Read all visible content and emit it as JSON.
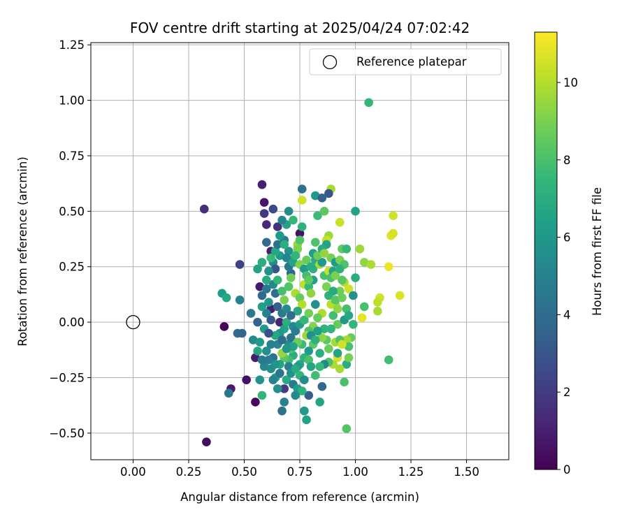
{
  "chart_data": {
    "type": "scatter",
    "title": "FOV centre drift starting at 2025/04/24 07:02:42",
    "xlabel": "Angular distance from reference (arcmin)",
    "ylabel": "Rotation from reference (arcmin)",
    "xlim": [
      -0.19,
      1.69
    ],
    "ylim": [
      -0.62,
      1.26
    ],
    "xticks": [
      "0.00",
      "0.25",
      "0.50",
      "0.75",
      "1.00",
      "1.25",
      "1.50"
    ],
    "xtick_values": [
      0,
      0.25,
      0.5,
      0.75,
      1.0,
      1.25,
      1.5
    ],
    "yticks": [
      "−0.50",
      "−0.25",
      "0.00",
      "0.25",
      "0.50",
      "0.75",
      "1.00",
      "1.25"
    ],
    "ytick_values": [
      -0.5,
      -0.25,
      0,
      0.25,
      0.5,
      0.75,
      1.0,
      1.25
    ],
    "grid": true,
    "legend": {
      "position": "top-right",
      "label": "Reference platepar"
    },
    "reference_point": {
      "x": 0,
      "y": 0
    },
    "colorbar": {
      "label": "Hours from first FF file",
      "colormap": "viridis",
      "range": [
        0,
        11.3
      ],
      "ticks": [
        "0",
        "2",
        "4",
        "6",
        "8",
        "10"
      ],
      "tick_values": [
        0,
        2,
        4,
        6,
        8,
        10
      ]
    },
    "points": [
      [
        0.32,
        0.51,
        1.5
      ],
      [
        0.33,
        -0.54,
        0.4
      ],
      [
        0.41,
        -0.02,
        0.1
      ],
      [
        0.44,
        -0.3,
        0.8
      ],
      [
        0.51,
        -0.26,
        0.5
      ],
      [
        0.55,
        -0.36,
        0.3
      ],
      [
        0.58,
        0.62,
        1.0
      ],
      [
        0.59,
        0.54,
        0.7
      ],
      [
        0.59,
        0.49,
        1.8
      ],
      [
        0.6,
        0.44,
        1.3
      ],
      [
        0.62,
        0.32,
        1.0
      ],
      [
        0.63,
        0.51,
        2.5
      ],
      [
        0.65,
        0.43,
        1.6
      ],
      [
        0.75,
        0.4,
        0.5
      ],
      [
        0.48,
        0.26,
        2.2
      ],
      [
        0.57,
        0.16,
        0.8
      ],
      [
        0.62,
        0.06,
        1.0
      ],
      [
        0.66,
        0.0,
        1.2
      ],
      [
        0.55,
        -0.16,
        0.9
      ],
      [
        0.68,
        -0.3,
        2.0
      ],
      [
        0.76,
        0.6,
        4.2
      ],
      [
        0.7,
        0.5,
        5.5
      ],
      [
        0.82,
        0.57,
        6.0
      ],
      [
        0.89,
        0.6,
        9.8
      ],
      [
        0.88,
        0.58,
        3.0
      ],
      [
        0.76,
        0.55,
        10.5
      ],
      [
        0.85,
        0.56,
        3.5
      ],
      [
        1.06,
        0.99,
        7.5
      ],
      [
        1.0,
        0.5,
        6.5
      ],
      [
        1.17,
        0.48,
        10.5
      ],
      [
        1.16,
        0.39,
        10.8
      ],
      [
        1.17,
        0.4,
        10.6
      ],
      [
        1.15,
        0.25,
        11.0
      ],
      [
        1.02,
        0.33,
        9.6
      ],
      [
        1.04,
        0.27,
        9.3
      ],
      [
        1.07,
        0.26,
        9.9
      ],
      [
        1.2,
        0.12,
        10.7
      ],
      [
        1.11,
        0.11,
        10.5
      ],
      [
        1.1,
        0.09,
        10.2
      ],
      [
        1.04,
        0.07,
        8.0
      ],
      [
        1.1,
        0.05,
        9.8
      ],
      [
        1.03,
        0.02,
        10.9
      ],
      [
        1.15,
        -0.17,
        7.8
      ],
      [
        0.96,
        -0.48,
        8.2
      ],
      [
        0.95,
        -0.27,
        8.0
      ],
      [
        0.85,
        -0.29,
        3.8
      ],
      [
        0.84,
        -0.36,
        6.6
      ],
      [
        0.77,
        -0.4,
        6.0
      ],
      [
        0.78,
        -0.44,
        6.5
      ],
      [
        0.79,
        -0.33,
        3.4
      ],
      [
        0.67,
        -0.4,
        4.2
      ],
      [
        0.68,
        -0.36,
        5.0
      ],
      [
        0.58,
        -0.33,
        7.4
      ],
      [
        0.43,
        -0.32,
        4.5
      ],
      [
        0.4,
        0.13,
        6.2
      ],
      [
        0.42,
        0.11,
        6.8
      ],
      [
        0.48,
        0.1,
        5.0
      ],
      [
        0.47,
        -0.05,
        4.0
      ],
      [
        0.49,
        -0.05,
        3.6
      ],
      [
        0.53,
        0.04,
        4.6
      ],
      [
        0.54,
        -0.08,
        5.4
      ],
      [
        0.56,
        -0.13,
        6.7
      ],
      [
        0.57,
        -0.26,
        5.8
      ],
      [
        0.64,
        -0.25,
        6.3
      ],
      [
        0.66,
        -0.23,
        4.4
      ],
      [
        0.6,
        0.04,
        5.0
      ],
      [
        0.61,
        0.09,
        6.0
      ],
      [
        0.56,
        0.24,
        6.5
      ],
      [
        0.58,
        0.27,
        7.0
      ],
      [
        0.6,
        0.36,
        4.0
      ],
      [
        0.63,
        0.27,
        5.5
      ],
      [
        0.64,
        0.24,
        3.0
      ],
      [
        0.66,
        0.3,
        6.2
      ],
      [
        0.68,
        0.37,
        4.8
      ],
      [
        0.7,
        0.32,
        5.8
      ],
      [
        0.71,
        0.28,
        6.8
      ],
      [
        0.69,
        0.44,
        6.5
      ],
      [
        0.67,
        0.46,
        5.2
      ],
      [
        0.72,
        0.46,
        7.5
      ],
      [
        0.74,
        0.35,
        9.5
      ],
      [
        0.74,
        0.33,
        9.0
      ],
      [
        0.76,
        0.43,
        7.2
      ],
      [
        0.78,
        0.28,
        8.6
      ],
      [
        0.81,
        0.24,
        7.3
      ],
      [
        0.82,
        0.36,
        8.1
      ],
      [
        0.83,
        0.48,
        7.7
      ],
      [
        0.86,
        0.5,
        8.4
      ],
      [
        0.88,
        0.39,
        9.6
      ],
      [
        0.87,
        0.37,
        10.3
      ],
      [
        0.87,
        0.35,
        6.5
      ],
      [
        0.89,
        0.29,
        8.9
      ],
      [
        0.91,
        0.27,
        6.2
      ],
      [
        0.93,
        0.45,
        10.4
      ],
      [
        0.94,
        0.33,
        8.5
      ],
      [
        0.93,
        0.28,
        9.0
      ],
      [
        0.95,
        0.26,
        8.1
      ],
      [
        0.96,
        0.33,
        7.5
      ],
      [
        0.95,
        0.18,
        9.9
      ],
      [
        0.94,
        0.19,
        8.3
      ],
      [
        0.97,
        0.15,
        10.5
      ],
      [
        0.93,
        0.14,
        8.8
      ],
      [
        0.91,
        0.08,
        9.5
      ],
      [
        0.9,
        0.03,
        7.8
      ],
      [
        0.92,
        -0.01,
        8.6
      ],
      [
        0.95,
        0.01,
        6.0
      ],
      [
        0.98,
        -0.07,
        8.7
      ],
      [
        0.96,
        -0.08,
        9.8
      ],
      [
        0.97,
        -0.11,
        8.0
      ],
      [
        0.96,
        -0.19,
        7.0
      ],
      [
        0.97,
        -0.16,
        8.9
      ],
      [
        0.93,
        -0.21,
        9.8
      ],
      [
        0.92,
        -0.16,
        10.6
      ],
      [
        0.9,
        -0.19,
        9.9
      ],
      [
        0.88,
        -0.18,
        8.1
      ],
      [
        0.86,
        -0.19,
        5.3
      ],
      [
        0.84,
        -0.2,
        7.6
      ],
      [
        0.87,
        -0.08,
        8.4
      ],
      [
        0.85,
        -0.07,
        9.3
      ],
      [
        0.86,
        -0.03,
        7.3
      ],
      [
        0.85,
        0.04,
        9.9
      ],
      [
        0.83,
        0.02,
        8.6
      ],
      [
        0.82,
        0.08,
        5.6
      ],
      [
        0.81,
        -0.02,
        9.2
      ],
      [
        0.79,
        -0.04,
        8.1
      ],
      [
        0.78,
        -0.06,
        9.6
      ],
      [
        0.77,
        -0.16,
        7.2
      ],
      [
        0.75,
        -0.19,
        6.7
      ],
      [
        0.74,
        -0.2,
        6.0
      ],
      [
        0.72,
        -0.15,
        7.0
      ],
      [
        0.71,
        -0.12,
        8.3
      ],
      [
        0.7,
        -0.1,
        5.6
      ],
      [
        0.71,
        -0.07,
        4.3
      ],
      [
        0.68,
        -0.03,
        6.5
      ],
      [
        0.69,
        0.0,
        7.1
      ],
      [
        0.66,
        -0.05,
        5.9
      ],
      [
        0.64,
        -0.06,
        6.8
      ],
      [
        0.63,
        -0.16,
        4.2
      ],
      [
        0.61,
        -0.17,
        4.8
      ],
      [
        0.6,
        -0.13,
        5.6
      ],
      [
        0.62,
        -0.1,
        5.0
      ],
      [
        0.59,
        -0.03,
        6.1
      ],
      [
        0.62,
        0.01,
        3.2
      ],
      [
        0.64,
        0.13,
        4.1
      ],
      [
        0.63,
        0.17,
        5.3
      ],
      [
        0.65,
        0.19,
        7.5
      ],
      [
        0.67,
        0.14,
        7.9
      ],
      [
        0.68,
        0.1,
        9.0
      ],
      [
        0.7,
        0.16,
        8.2
      ],
      [
        0.71,
        0.22,
        3.6
      ],
      [
        0.73,
        0.13,
        9.9
      ],
      [
        0.75,
        0.11,
        8.6
      ],
      [
        0.76,
        0.08,
        10.0
      ],
      [
        0.74,
        0.05,
        6.8
      ],
      [
        0.77,
        0.17,
        10.2
      ],
      [
        0.79,
        0.16,
        7.6
      ],
      [
        0.8,
        0.13,
        9.4
      ],
      [
        0.81,
        0.19,
        6.4
      ],
      [
        0.82,
        0.28,
        7.0
      ],
      [
        0.84,
        0.26,
        9.7
      ],
      [
        0.85,
        0.27,
        6.1
      ],
      [
        0.86,
        0.21,
        7.9
      ],
      [
        0.87,
        0.16,
        9.0
      ],
      [
        0.88,
        0.12,
        7.2
      ],
      [
        0.89,
        0.08,
        10.1
      ],
      [
        0.9,
        0.14,
        6.9
      ],
      [
        0.91,
        0.1,
        8.3
      ],
      [
        0.92,
        0.06,
        9.3
      ],
      [
        0.89,
        -0.03,
        7.4
      ],
      [
        0.91,
        -0.09,
        9.7
      ],
      [
        0.93,
        -0.08,
        8.2
      ],
      [
        0.94,
        -0.1,
        10.5
      ],
      [
        0.92,
        -0.14,
        6.6
      ],
      [
        0.88,
        -0.12,
        8.7
      ],
      [
        0.84,
        -0.14,
        7.0
      ],
      [
        0.81,
        -0.1,
        8.4
      ],
      [
        0.79,
        -0.13,
        6.2
      ],
      [
        0.76,
        -0.1,
        7.7
      ],
      [
        0.74,
        -0.09,
        8.7
      ],
      [
        0.72,
        -0.11,
        6.5
      ],
      [
        0.7,
        -0.17,
        7.8
      ],
      [
        0.68,
        -0.16,
        8.4
      ],
      [
        0.67,
        -0.14,
        9.5
      ],
      [
        0.66,
        -0.19,
        6.6
      ],
      [
        0.64,
        -0.19,
        5.9
      ],
      [
        0.62,
        -0.21,
        5.5
      ],
      [
        0.63,
        -0.26,
        5.0
      ],
      [
        0.65,
        -0.3,
        5.7
      ],
      [
        0.69,
        -0.26,
        6.9
      ],
      [
        0.72,
        -0.28,
        4.7
      ],
      [
        0.74,
        -0.3,
        6.3
      ],
      [
        0.76,
        -0.31,
        7.2
      ],
      [
        0.73,
        -0.33,
        5.4
      ],
      [
        0.58,
        0.07,
        6.4
      ],
      [
        0.58,
        0.12,
        3.8
      ],
      [
        0.6,
        0.15,
        4.5
      ],
      [
        0.6,
        0.19,
        6.9
      ],
      [
        0.61,
        0.23,
        5.7
      ],
      [
        0.62,
        0.29,
        7.6
      ],
      [
        0.64,
        0.32,
        6.7
      ],
      [
        0.65,
        0.35,
        4.3
      ],
      [
        0.66,
        0.39,
        6.1
      ],
      [
        0.68,
        0.35,
        7.1
      ],
      [
        0.69,
        0.29,
        5.1
      ],
      [
        0.7,
        0.25,
        4.4
      ],
      [
        0.71,
        0.2,
        8.8
      ],
      [
        0.72,
        0.27,
        6.6
      ],
      [
        0.73,
        0.3,
        7.4
      ],
      [
        0.75,
        0.37,
        8.2
      ],
      [
        0.75,
        0.26,
        9.1
      ],
      [
        0.77,
        0.24,
        6.1
      ],
      [
        0.78,
        0.21,
        7.9
      ],
      [
        0.79,
        0.19,
        8.5
      ],
      [
        0.8,
        0.25,
        7.0
      ],
      [
        0.81,
        0.31,
        6.3
      ],
      [
        0.83,
        0.3,
        8.7
      ],
      [
        0.85,
        0.33,
        6.9
      ],
      [
        0.86,
        0.31,
        9.4
      ],
      [
        0.88,
        0.23,
        10.3
      ],
      [
        0.89,
        0.2,
        8.0
      ],
      [
        0.9,
        0.23,
        6.6
      ],
      [
        0.91,
        0.21,
        9.0
      ],
      [
        0.93,
        0.24,
        7.2
      ],
      [
        0.94,
        0.11,
        8.7
      ],
      [
        0.96,
        0.06,
        7.9
      ],
      [
        0.97,
        0.03,
        6.8
      ],
      [
        0.99,
        -0.01,
        7.4
      ],
      [
        0.99,
        0.12,
        5.8
      ],
      [
        1.0,
        0.2,
        7.0
      ],
      [
        0.65,
        0.07,
        3.4
      ],
      [
        0.67,
        0.04,
        4.6
      ],
      [
        0.69,
        0.06,
        5.4
      ],
      [
        0.71,
        0.03,
        4.0
      ],
      [
        0.72,
        -0.02,
        5.3
      ],
      [
        0.73,
        -0.04,
        4.8
      ],
      [
        0.75,
        -0.01,
        6.4
      ],
      [
        0.77,
        0.01,
        7.5
      ],
      [
        0.79,
        0.04,
        8.8
      ],
      [
        0.8,
        -0.06,
        5.7
      ],
      [
        0.82,
        -0.08,
        7.2
      ],
      [
        0.83,
        -0.04,
        6.3
      ],
      [
        0.61,
        -0.05,
        2.8
      ],
      [
        0.56,
        0.0,
        3.6
      ],
      [
        0.57,
        -0.09,
        6.0
      ],
      [
        0.59,
        -0.2,
        5.2
      ],
      [
        0.58,
        -0.17,
        4.6
      ],
      [
        0.65,
        -0.1,
        5.1
      ],
      [
        0.67,
        -0.08,
        4.0
      ],
      [
        0.69,
        -0.12,
        6.0
      ],
      [
        0.7,
        -0.2,
        4.9
      ],
      [
        0.71,
        -0.23,
        5.8
      ],
      [
        0.73,
        -0.21,
        6.9
      ],
      [
        0.75,
        -0.24,
        7.4
      ],
      [
        0.77,
        -0.26,
        5.5
      ],
      [
        0.79,
        -0.17,
        8.0
      ],
      [
        0.8,
        -0.2,
        6.6
      ],
      [
        0.82,
        -0.24,
        7.8
      ]
    ]
  }
}
